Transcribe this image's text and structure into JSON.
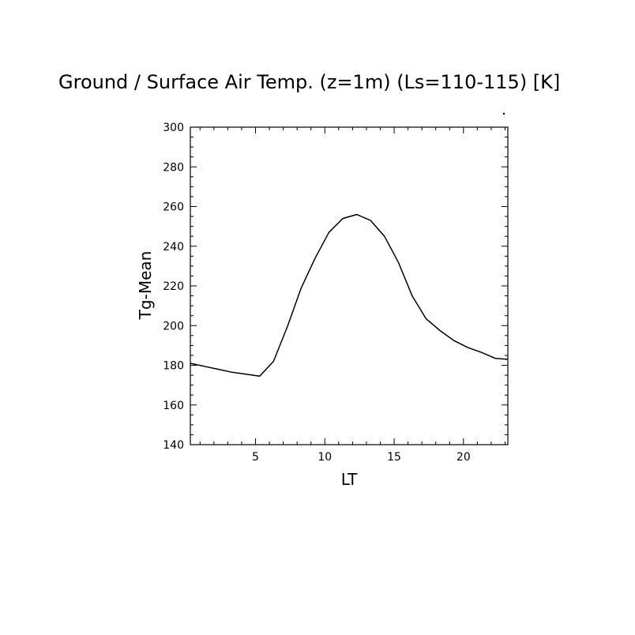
{
  "chart_data": {
    "type": "line",
    "title": "Ground / Surface Air Temp. (z=1m) (Ls=110-115) [K]",
    "xlabel": "LT",
    "ylabel": "Tg-Mean",
    "xlim": [
      0.3,
      23.2
    ],
    "ylim": [
      140,
      300
    ],
    "x_ticks": [
      5,
      10,
      15,
      20
    ],
    "x_tick_labels": [
      "5",
      "10",
      "15",
      "20"
    ],
    "y_ticks": [
      140,
      160,
      180,
      200,
      220,
      240,
      260,
      280,
      300
    ],
    "y_tick_labels": [
      "140",
      "160",
      "180",
      "200",
      "220",
      "240",
      "260",
      "280",
      "300"
    ],
    "grid": false,
    "series": [
      {
        "x": [
          0.3,
          1.3,
          2.3,
          3.3,
          4.3,
          5.3,
          6.3,
          7.3,
          8.3,
          9.3,
          10.3,
          11.3,
          12.3,
          13.3,
          14.3,
          15.3,
          16.3,
          17.3,
          18.3,
          19.3,
          20.3,
          21.3,
          22.3,
          23.2
        ],
        "values": [
          181,
          179.5,
          178,
          176.5,
          175.5,
          174.5,
          182,
          199.5,
          219,
          234,
          247,
          254,
          256,
          253,
          245,
          232,
          215,
          203.5,
          197.5,
          192.5,
          189,
          186.5,
          183.5,
          183
        ]
      }
    ]
  }
}
